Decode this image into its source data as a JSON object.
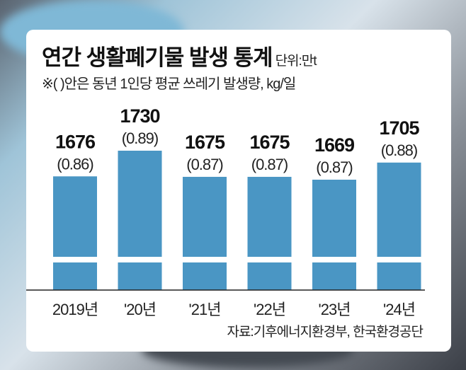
{
  "chart_data": {
    "type": "bar",
    "title": "연간 생활폐기물 발생 통계",
    "unit": "단위:만t",
    "note": "※(  )안은 동년 1인당 평균 쓰레기 발생량, kg/일",
    "categories": [
      "2019년",
      "'20년",
      "'21년",
      "'22년",
      "'23년",
      "'24년"
    ],
    "values": [
      1676,
      1730,
      1675,
      1675,
      1669,
      1705
    ],
    "value_labels": [
      "1676",
      "1730",
      "1675",
      "1675",
      "1669",
      "1705"
    ],
    "per_capita_labels": [
      "(0.86)",
      "(0.89)",
      "(0.87)",
      "(0.87)",
      "(0.87)",
      "(0.88)"
    ],
    "per_capita": [
      0.86,
      0.89,
      0.87,
      0.87,
      0.87,
      0.88
    ],
    "axis_break": true,
    "source": "자료:기후에너지환경부, 한국환경공단",
    "bar_color": "#4a96c4"
  }
}
